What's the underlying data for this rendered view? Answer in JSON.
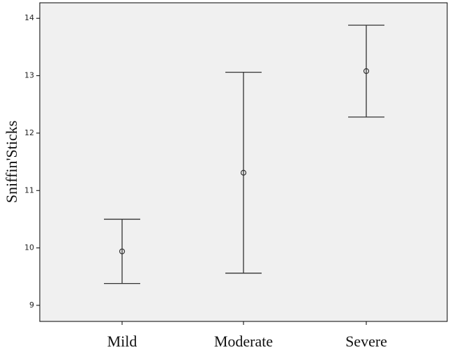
{
  "chart_data": {
    "type": "errorbar",
    "ylabel": "Sniffin'Sticks",
    "categories": [
      "Mild",
      "Moderate",
      "Severe"
    ],
    "values": [
      9.94,
      11.31,
      13.08
    ],
    "errors": [
      0.56,
      1.75,
      0.8
    ],
    "color": "#333333",
    "ylim": [
      8.72,
      14.27
    ],
    "yticks": [
      9,
      10,
      11,
      12,
      13,
      14
    ]
  }
}
